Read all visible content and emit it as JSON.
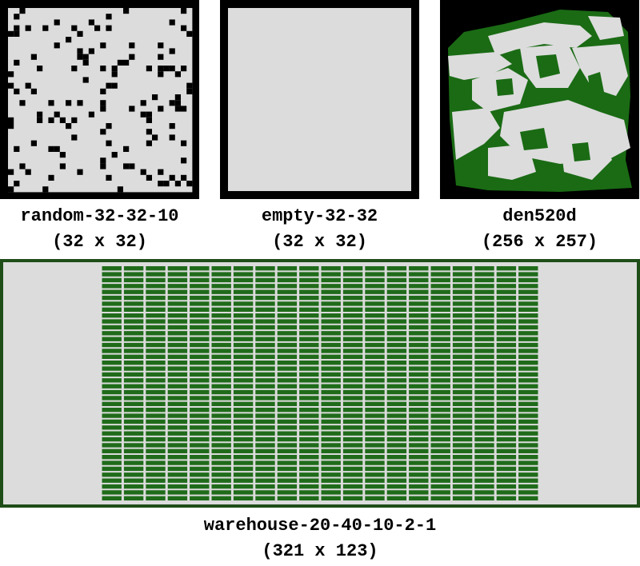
{
  "colors": {
    "free": "#dcdcdc",
    "obstacle": "#000000",
    "shelf": "#1f6b1a",
    "den_obstacle": "#1a6b14",
    "frame": "#000000"
  },
  "maps": [
    {
      "name": "random-32-32-10",
      "size": "(32 x 32)"
    },
    {
      "name": "empty-32-32",
      "size": "(32 x 32)"
    },
    {
      "name": "den520d",
      "size": "(256 x 257)"
    },
    {
      "name": "warehouse-20-40-10-2-1",
      "size": "(321 x 123)"
    }
  ]
}
